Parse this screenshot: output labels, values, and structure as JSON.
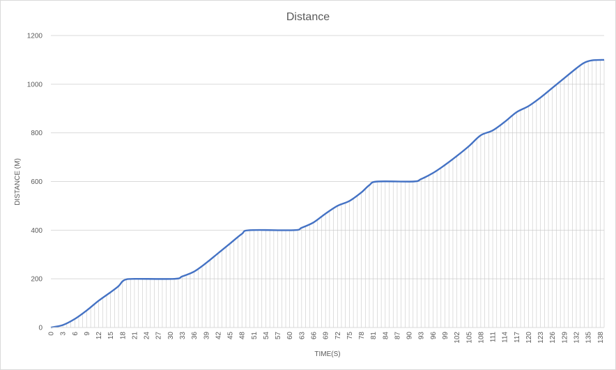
{
  "chart_data": {
    "type": "line",
    "title": "Distance",
    "xlabel": "TIME(S)",
    "ylabel": "DISTANCE (M)",
    "xlim": [
      0,
      139
    ],
    "ylim": [
      0,
      1200
    ],
    "yticks": [
      0,
      200,
      400,
      600,
      800,
      1000,
      1200
    ],
    "xtick_step": 3,
    "grid": true,
    "drop_lines": true,
    "legend": "none",
    "colors": {
      "line": "#4472c4",
      "grid": "#d9d9d9",
      "drop": "#c8c8c8",
      "text": "#595959"
    },
    "series": [
      {
        "values": [
          {
            "x": 0,
            "y": 0
          },
          {
            "x": 3,
            "y": 10
          },
          {
            "x": 6,
            "y": 35
          },
          {
            "x": 9,
            "y": 70
          },
          {
            "x": 12,
            "y": 110
          },
          {
            "x": 15,
            "y": 145
          },
          {
            "x": 17,
            "y": 170
          },
          {
            "x": 18,
            "y": 190
          },
          {
            "x": 19,
            "y": 198
          },
          {
            "x": 21,
            "y": 200
          },
          {
            "x": 31,
            "y": 200
          },
          {
            "x": 33,
            "y": 210
          },
          {
            "x": 36,
            "y": 230
          },
          {
            "x": 39,
            "y": 265
          },
          {
            "x": 42,
            "y": 305
          },
          {
            "x": 45,
            "y": 345
          },
          {
            "x": 48,
            "y": 385
          },
          {
            "x": 50,
            "y": 400
          },
          {
            "x": 61,
            "y": 400
          },
          {
            "x": 63,
            "y": 410
          },
          {
            "x": 66,
            "y": 432
          },
          {
            "x": 69,
            "y": 468
          },
          {
            "x": 72,
            "y": 500
          },
          {
            "x": 75,
            "y": 520
          },
          {
            "x": 78,
            "y": 555
          },
          {
            "x": 80,
            "y": 585
          },
          {
            "x": 82,
            "y": 600
          },
          {
            "x": 91,
            "y": 600
          },
          {
            "x": 93,
            "y": 610
          },
          {
            "x": 96,
            "y": 635
          },
          {
            "x": 99,
            "y": 668
          },
          {
            "x": 102,
            "y": 705
          },
          {
            "x": 105,
            "y": 745
          },
          {
            "x": 108,
            "y": 790
          },
          {
            "x": 111,
            "y": 810
          },
          {
            "x": 114,
            "y": 845
          },
          {
            "x": 117,
            "y": 885
          },
          {
            "x": 120,
            "y": 910
          },
          {
            "x": 123,
            "y": 945
          },
          {
            "x": 126,
            "y": 985
          },
          {
            "x": 129,
            "y": 1025
          },
          {
            "x": 132,
            "y": 1065
          },
          {
            "x": 134,
            "y": 1088
          },
          {
            "x": 136,
            "y": 1098
          },
          {
            "x": 139,
            "y": 1100
          }
        ]
      }
    ]
  }
}
